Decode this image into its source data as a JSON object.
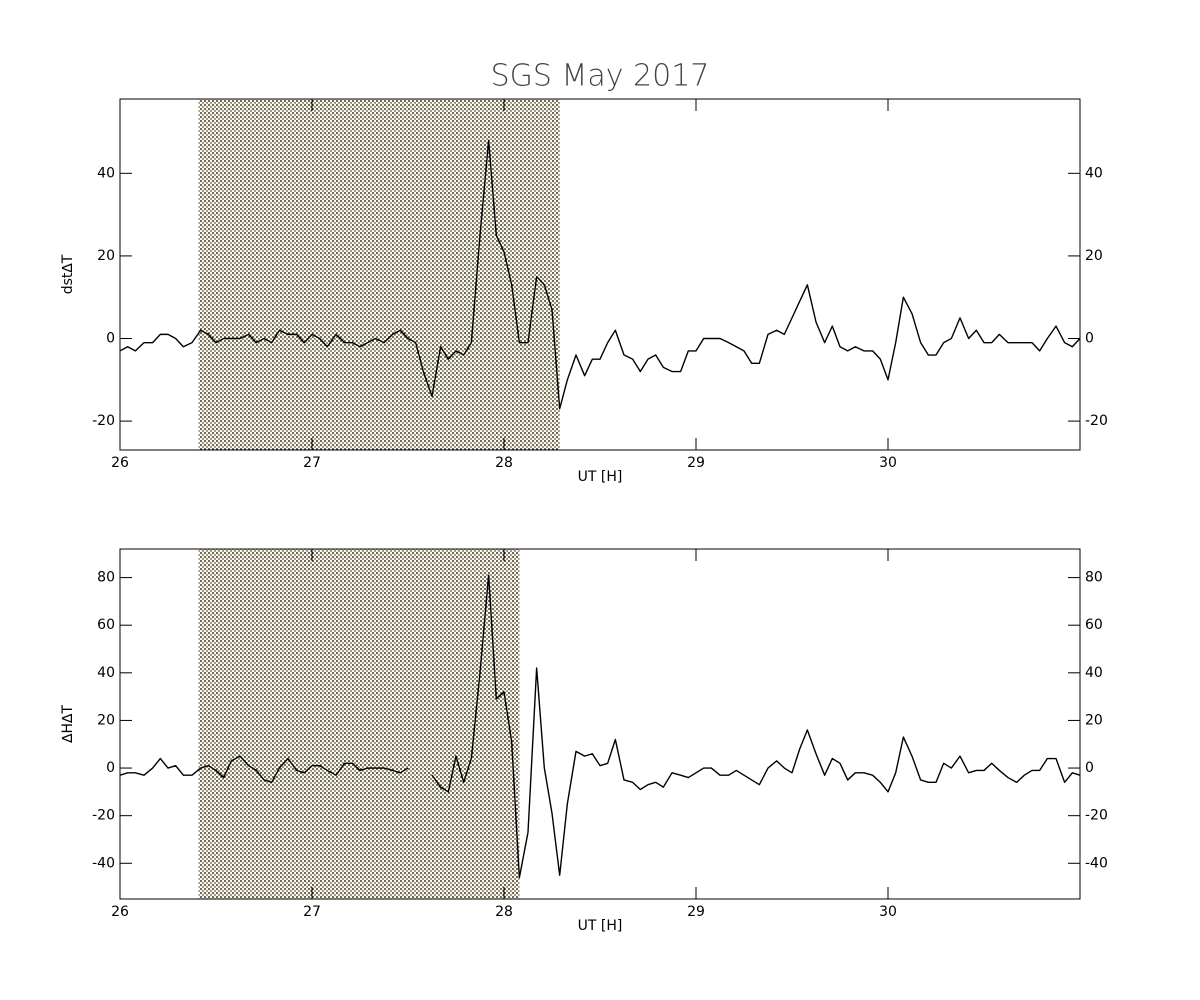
{
  "chart_data": [
    {
      "type": "line",
      "title": "SGS May 2017",
      "xlabel": "UT [H]",
      "ylabel": "dst∆T",
      "xlim": [
        26,
        31
      ],
      "xticks": [
        26,
        27,
        28,
        29,
        30
      ],
      "ylim": [
        -27,
        58
      ],
      "yticks": [
        -20,
        0,
        20,
        40
      ],
      "shade": [
        26.41,
        28.29
      ],
      "shade_color": "#f0b400",
      "x": [
        26,
        26.04,
        26.08,
        26.125,
        26.17,
        26.21,
        26.25,
        26.29,
        26.33,
        26.375,
        26.42,
        26.46,
        26.5,
        26.54,
        26.58,
        26.625,
        26.67,
        26.71,
        26.75,
        26.79,
        26.83,
        26.875,
        26.92,
        26.96,
        27,
        27.04,
        27.08,
        27.125,
        27.17,
        27.21,
        27.25,
        27.29,
        27.33,
        27.375,
        27.42,
        27.46,
        27.5,
        27.54,
        27.58,
        27.625,
        27.67,
        27.71,
        27.75,
        27.79,
        27.83,
        27.875,
        27.92,
        27.96,
        28,
        28.04,
        28.08,
        28.125,
        28.17,
        28.21,
        28.25,
        28.29,
        28.33,
        28.375,
        28.42,
        28.46,
        28.5,
        28.54,
        28.58,
        28.625,
        28.67,
        28.71,
        28.75,
        28.79,
        28.83,
        28.875,
        28.92,
        28.96,
        29,
        29.04,
        29.08,
        29.125,
        29.17,
        29.21,
        29.25,
        29.29,
        29.33,
        29.375,
        29.42,
        29.46,
        29.5,
        29.54,
        29.58,
        29.625,
        29.67,
        29.71,
        29.75,
        29.79,
        29.83,
        29.875,
        29.92,
        29.96,
        30,
        30.04,
        30.08,
        30.125,
        30.17,
        30.21,
        30.25,
        30.29,
        30.33,
        30.375,
        30.42,
        30.46,
        30.5,
        30.54,
        30.58,
        30.625,
        30.67,
        30.71,
        30.75,
        30.79,
        30.83,
        30.875,
        30.92,
        30.96,
        31
      ],
      "series": [
        {
          "color": "#000000",
          "values": [
            -3,
            -2,
            -3,
            -1,
            -1,
            1,
            1,
            0,
            -2,
            -1,
            2,
            1,
            -1,
            0,
            0,
            0,
            1,
            -1,
            0,
            -1,
            2,
            1,
            1,
            -1,
            1,
            0,
            -2,
            1,
            -1,
            -1,
            -2,
            -1,
            0,
            -1,
            1,
            2,
            0,
            -1,
            -8,
            -14,
            -2,
            -5,
            -3,
            -4,
            -1,
            25,
            48,
            25,
            21,
            13,
            -1,
            -1,
            15,
            13,
            7,
            -17,
            -10,
            -4,
            -9,
            -5,
            -5,
            -1,
            2,
            -4,
            -5,
            -8,
            -5,
            -4,
            -7,
            -8,
            -8,
            -3,
            -3,
            0,
            0,
            0,
            -1,
            -2,
            -3,
            -6,
            -6,
            1,
            2,
            1,
            5,
            9,
            13,
            4,
            -1,
            3,
            -2,
            -3,
            -2,
            -3,
            -3,
            -5,
            -10,
            -1,
            10,
            6,
            -1,
            -4,
            -4,
            -1,
            0,
            5,
            0,
            2,
            -1,
            -1,
            1,
            -1,
            -1,
            -1,
            -1,
            -3,
            0,
            3,
            -1,
            -2,
            0
          ]
        }
      ]
    },
    {
      "type": "line",
      "xlabel": "UT [H]",
      "ylabel": "∆H∆T",
      "xlim": [
        26,
        31
      ],
      "xticks": [
        26,
        27,
        28,
        29,
        30
      ],
      "ylim": [
        -55,
        92
      ],
      "yticks": [
        -40,
        -20,
        0,
        20,
        40,
        60,
        80
      ],
      "shade": [
        26.41,
        28.08
      ],
      "shade_color": "#f0b400",
      "x": [
        26,
        26.04,
        26.08,
        26.125,
        26.17,
        26.21,
        26.25,
        26.29,
        26.33,
        26.375,
        26.42,
        26.46,
        26.5,
        26.54,
        26.58,
        26.625,
        26.67,
        26.71,
        26.75,
        26.79,
        26.83,
        26.875,
        26.92,
        26.96,
        27,
        27.04,
        27.08,
        27.125,
        27.17,
        27.21,
        27.25,
        27.29,
        27.33,
        27.375,
        27.42,
        27.46,
        27.5,
        27.54,
        27.58,
        27.625,
        27.67,
        27.71,
        27.75,
        27.79,
        27.83,
        27.875,
        27.92,
        27.96,
        28,
        28.04,
        28.08,
        28.125,
        28.17,
        28.21,
        28.25,
        28.29,
        28.33,
        28.375,
        28.42,
        28.46,
        28.5,
        28.54,
        28.58,
        28.625,
        28.67,
        28.71,
        28.75,
        28.79,
        28.83,
        28.875,
        28.92,
        28.96,
        29,
        29.04,
        29.08,
        29.125,
        29.17,
        29.21,
        29.25,
        29.29,
        29.33,
        29.375,
        29.42,
        29.46,
        29.5,
        29.54,
        29.58,
        29.625,
        29.67,
        29.71,
        29.75,
        29.79,
        29.83,
        29.875,
        29.92,
        29.96,
        30,
        30.04,
        30.08,
        30.125,
        30.17,
        30.21,
        30.25,
        30.29,
        30.33,
        30.375,
        30.42,
        30.46,
        30.5,
        30.54,
        30.58,
        30.625,
        30.67,
        30.71,
        30.75,
        30.79,
        30.83,
        30.875,
        30.92,
        30.96,
        31
      ],
      "series": [
        {
          "color": "#000000",
          "values": [
            -3,
            -2,
            -2,
            -3,
            0,
            4,
            0,
            1,
            -3,
            -3,
            0,
            1,
            -1,
            -4,
            3,
            5,
            1,
            -1,
            -5,
            -6,
            0,
            4,
            -1,
            -2,
            1,
            1,
            -1,
            -3,
            2,
            2,
            -1,
            0,
            0,
            0,
            -1,
            -2,
            0,
            null,
            null,
            -3,
            -8,
            -10,
            5,
            -6,
            4,
            40,
            81,
            29,
            32,
            11,
            -46,
            -27,
            42,
            0,
            -19,
            -45,
            -15,
            7,
            5,
            6,
            1,
            2,
            12,
            -5,
            -6,
            -9,
            -7,
            -6,
            -8,
            -2,
            -3,
            -4,
            -2,
            0,
            0,
            -3,
            -3,
            -1,
            -3,
            -5,
            -7,
            0,
            3,
            0,
            -2,
            8,
            16,
            6,
            -3,
            4,
            2,
            -5,
            -2,
            -2,
            -3,
            -6,
            -10,
            -2,
            13,
            5,
            -5,
            -6,
            -6,
            2,
            0,
            5,
            -2,
            -1,
            -1,
            2,
            -1,
            -4,
            -6,
            -3,
            -1,
            -1,
            4,
            4,
            -6,
            -2,
            -3
          ]
        }
      ]
    }
  ]
}
